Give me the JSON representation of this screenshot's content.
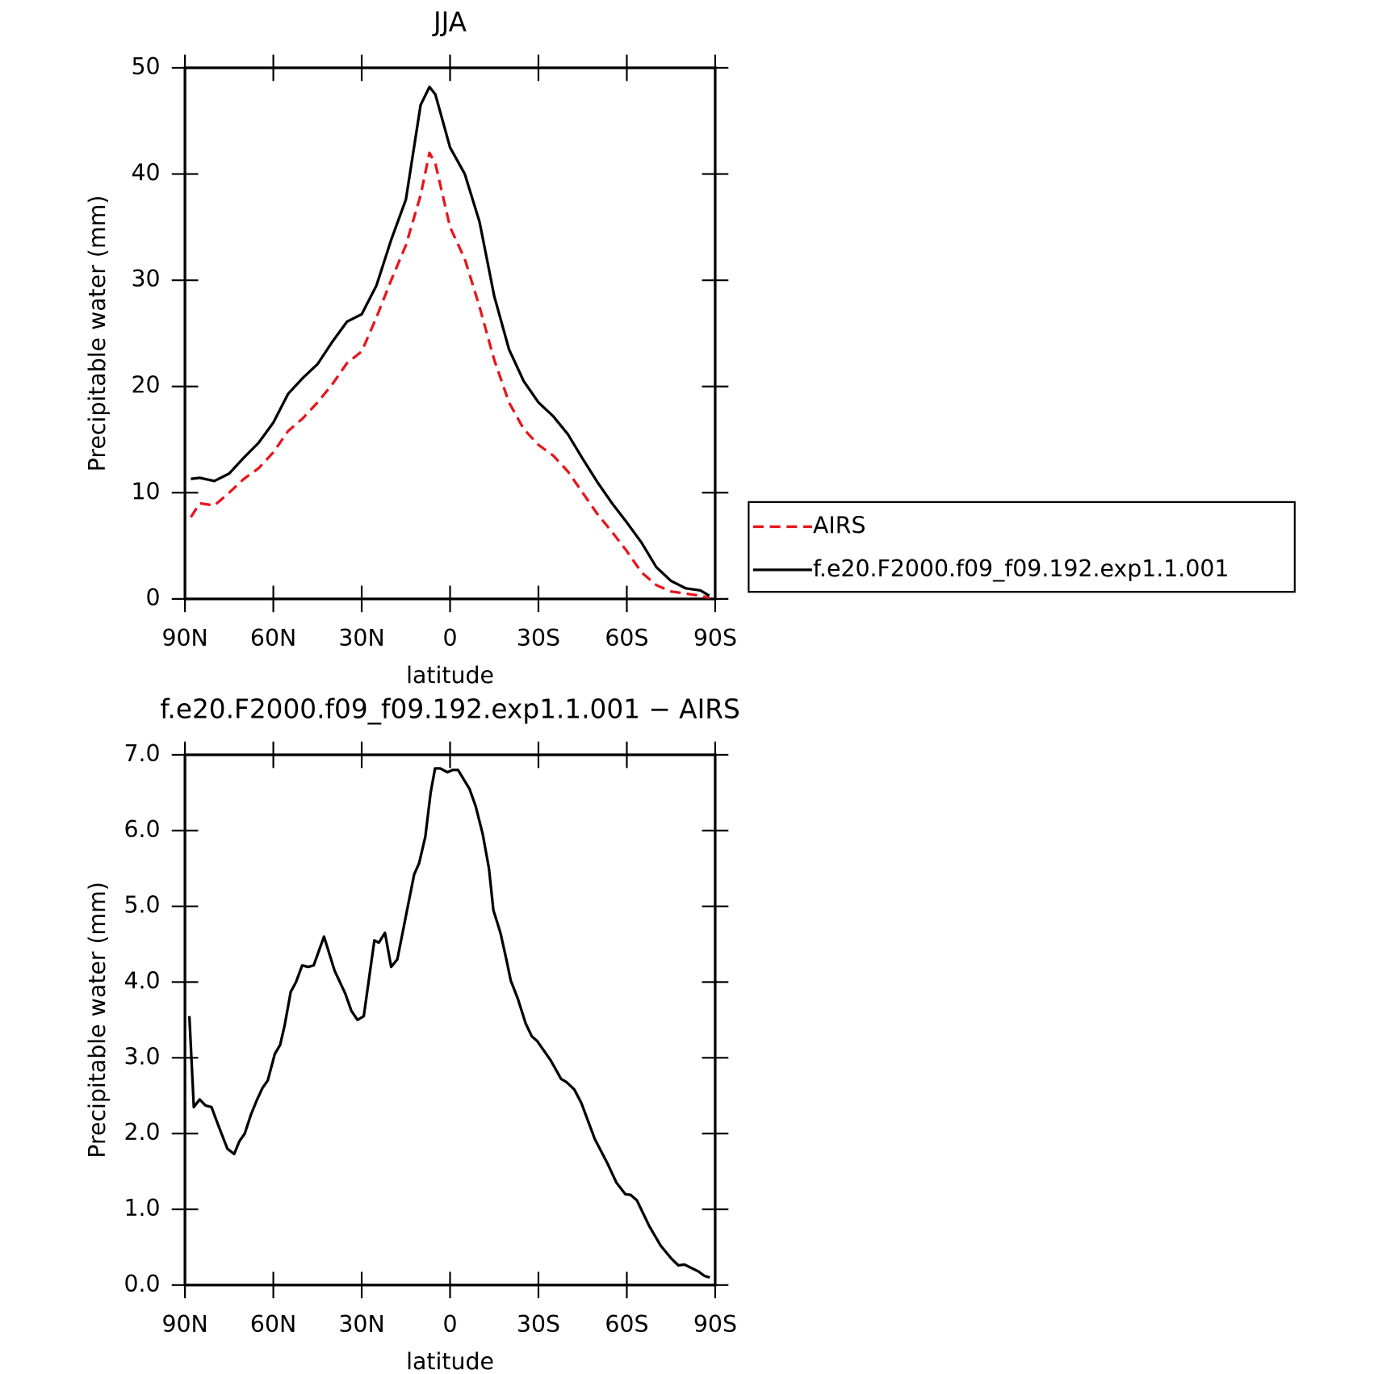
{
  "chart_data": [
    {
      "type": "line",
      "title": "JJA",
      "x_label": "latitude",
      "y_label": "Precipitable water (mm)",
      "x": [
        88,
        85,
        80,
        75,
        70,
        65,
        60,
        55,
        50,
        45,
        40,
        35,
        30,
        25,
        20,
        15,
        10,
        7,
        5,
        0,
        -5,
        -10,
        -15,
        -20,
        -25,
        -30,
        -35,
        -40,
        -45,
        -50,
        -55,
        -60,
        -65,
        -70,
        -75,
        -80,
        -85,
        -88
      ],
      "series": [
        {
          "name": "AIRS",
          "color": "#e8141c",
          "style": "dashed",
          "values": [
            7.7,
            9.0,
            8.8,
            10.0,
            11.3,
            12.3,
            13.8,
            15.8,
            17.0,
            18.5,
            20.2,
            22.2,
            23.3,
            26.5,
            30.0,
            33.3,
            38.0,
            42.0,
            41.0,
            35.0,
            32.0,
            27.5,
            22.5,
            18.5,
            16.0,
            14.5,
            13.5,
            12.0,
            10.0,
            8.0,
            6.3,
            4.5,
            2.5,
            1.3,
            0.7,
            0.5,
            0.3,
            0.1
          ]
        },
        {
          "name": "f.e20.F2000.f09_f09.192.exp1.1.001",
          "color": "#000000",
          "style": "solid",
          "values": [
            11.3,
            11.4,
            11.1,
            11.8,
            13.3,
            14.7,
            16.6,
            19.3,
            20.8,
            22.1,
            24.2,
            26.1,
            26.8,
            29.5,
            33.8,
            37.6,
            46.5,
            48.2,
            47.5,
            42.5,
            40.0,
            35.5,
            28.5,
            23.5,
            20.5,
            18.5,
            17.2,
            15.5,
            13.2,
            11.0,
            9.0,
            7.2,
            5.3,
            3.0,
            1.7,
            1.0,
            0.8,
            0.3
          ]
        }
      ],
      "xlim": [
        90,
        -90
      ],
      "xticks": [
        {
          "value": 90,
          "label": "90N"
        },
        {
          "value": 60,
          "label": "60N"
        },
        {
          "value": 30,
          "label": "30N"
        },
        0,
        {
          "value": -30,
          "label": "30S"
        },
        {
          "value": -60,
          "label": "60S"
        },
        {
          "value": -90,
          "label": "90S"
        }
      ],
      "ylim": [
        0,
        50
      ],
      "yticks": [
        0,
        10,
        20,
        30,
        40,
        50
      ],
      "grid": false,
      "legend": "right"
    },
    {
      "type": "line",
      "title": "f.e20.F2000.f09_f09.192.exp1.1.001 − AIRS",
      "x_label": "latitude",
      "y_label": "Precipitable water (mm)",
      "x": [
        88.5,
        87,
        85,
        83,
        81,
        78.6,
        75.6,
        73.3,
        71.5,
        69.7,
        67.6,
        65.5,
        63.7,
        61.9,
        59.5,
        57.7,
        56.2,
        54.1,
        52.3,
        50.2,
        48.1,
        46.3,
        42.8,
        39.2,
        35.6,
        33.5,
        31.4,
        29.3,
        25.7,
        24.2,
        22.1,
        20,
        17.9,
        14.6,
        12.2,
        10.5,
        8.4,
        6.6,
        5.1,
        3.3,
        0.9,
        -0.9,
        -2.7,
        -6.6,
        -8.7,
        -11.1,
        -13.2,
        -14.7,
        -17.1,
        -19.1,
        -20.6,
        -23,
        -25.7,
        -27.8,
        -29.6,
        -34.1,
        -37.7,
        -39.5,
        -42.2,
        -44.6,
        -49.1,
        -53.5,
        -56.5,
        -59.5,
        -61.3,
        -63.4,
        -67.6,
        -71.5,
        -75.1,
        -77.5,
        -79.6,
        -84.3,
        -86.4,
        -88.2
      ],
      "series": [
        {
          "name": "f.e20.F2000.f09_f09.192.exp1.1.001 − AIRS",
          "color": "#000000",
          "style": "solid",
          "values": [
            3.55,
            2.35,
            2.45,
            2.37,
            2.35,
            2.1,
            1.8,
            1.73,
            1.9,
            2.0,
            2.25,
            2.45,
            2.6,
            2.7,
            3.05,
            3.17,
            3.42,
            3.87,
            4.0,
            4.22,
            4.2,
            4.22,
            4.6,
            4.15,
            3.85,
            3.62,
            3.5,
            3.55,
            4.55,
            4.52,
            4.65,
            4.2,
            4.3,
            4.95,
            5.42,
            5.57,
            5.92,
            6.5,
            6.82,
            6.82,
            6.77,
            6.8,
            6.8,
            6.55,
            6.32,
            5.95,
            5.5,
            4.95,
            4.65,
            4.3,
            4.02,
            3.78,
            3.45,
            3.28,
            3.22,
            2.97,
            2.72,
            2.68,
            2.58,
            2.4,
            1.93,
            1.6,
            1.35,
            1.2,
            1.19,
            1.12,
            0.78,
            0.52,
            0.35,
            0.26,
            0.27,
            0.18,
            0.12,
            0.1
          ]
        }
      ],
      "xlim": [
        90,
        -90
      ],
      "xticks": [
        {
          "value": 90,
          "label": "90N"
        },
        {
          "value": 60,
          "label": "60N"
        },
        {
          "value": 30,
          "label": "30N"
        },
        0,
        {
          "value": -30,
          "label": "30S"
        },
        {
          "value": -60,
          "label": "60S"
        },
        {
          "value": -90,
          "label": "90S"
        }
      ],
      "ylim": [
        0,
        7
      ],
      "yticks": [
        {
          "value": 0,
          "label": "0.0"
        },
        {
          "value": 1,
          "label": "1.0"
        },
        {
          "value": 2,
          "label": "2.0"
        },
        {
          "value": 3,
          "label": "3.0"
        },
        {
          "value": 4,
          "label": "4.0"
        },
        {
          "value": 5,
          "label": "5.0"
        },
        {
          "value": 6,
          "label": "6.0"
        },
        {
          "value": 7,
          "label": "7.0"
        }
      ],
      "grid": false,
      "legend": "none"
    }
  ]
}
